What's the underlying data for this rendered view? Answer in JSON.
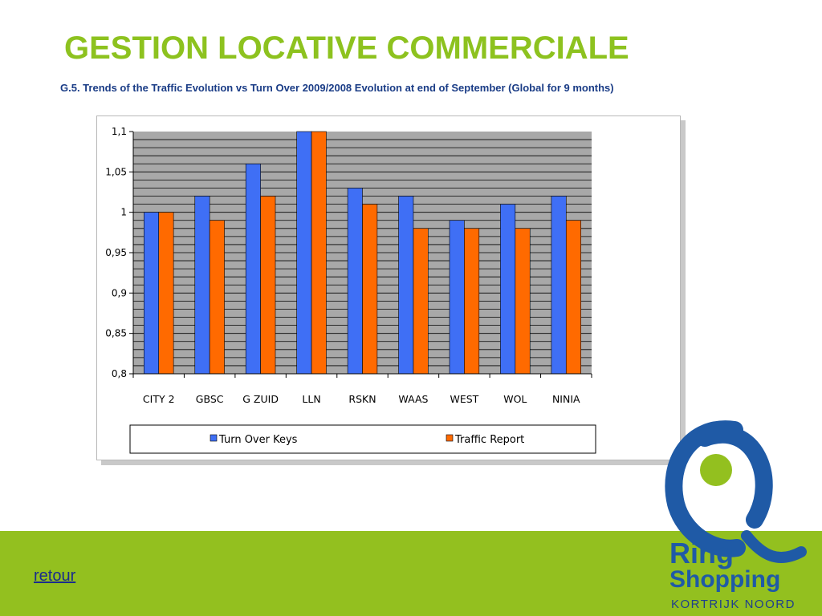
{
  "header": {
    "title": "GESTION LOCATIVE COMMERCIALE",
    "subtitle": "G.5. Trends of the Traffic Evolution vs Turn Over 2009/2008  Evolution at end of September (Global for 9 months)"
  },
  "chart_data": {
    "type": "bar",
    "categories": [
      "CITY 2",
      "GBSC",
      "G ZUID",
      "LLN",
      "RSKN",
      "WAAS",
      "WEST",
      "WOL",
      "NINIA"
    ],
    "series": [
      {
        "name": "Turn Over Keys",
        "color": "#3f6ff5",
        "values": [
          1.0,
          1.02,
          1.06,
          1.1,
          1.03,
          1.02,
          0.99,
          1.01,
          1.02
        ]
      },
      {
        "name": "Traffic Report",
        "color": "#ff6a00",
        "values": [
          1.0,
          0.99,
          1.02,
          1.1,
          1.01,
          0.98,
          0.98,
          0.98,
          0.99
        ]
      }
    ],
    "ylim": [
      0.8,
      1.1
    ],
    "yticks": [
      0.8,
      0.85,
      0.9,
      0.95,
      1.0,
      1.05,
      1.1
    ],
    "ytick_labels": [
      "0,8",
      "0,85",
      "0,9",
      "0,95",
      "1",
      "1,05",
      "1,1"
    ],
    "plot_background": "#a8a8a8",
    "gridlines": true,
    "legend_position": "bottom"
  },
  "footer": {
    "link_label": "retour",
    "background_color": "#93c01f"
  },
  "logo": {
    "line1": "Ring",
    "line2": "Shopping",
    "line3": "KORTRIJK NOORD",
    "icon": "ring-shopping-logo-icon"
  }
}
